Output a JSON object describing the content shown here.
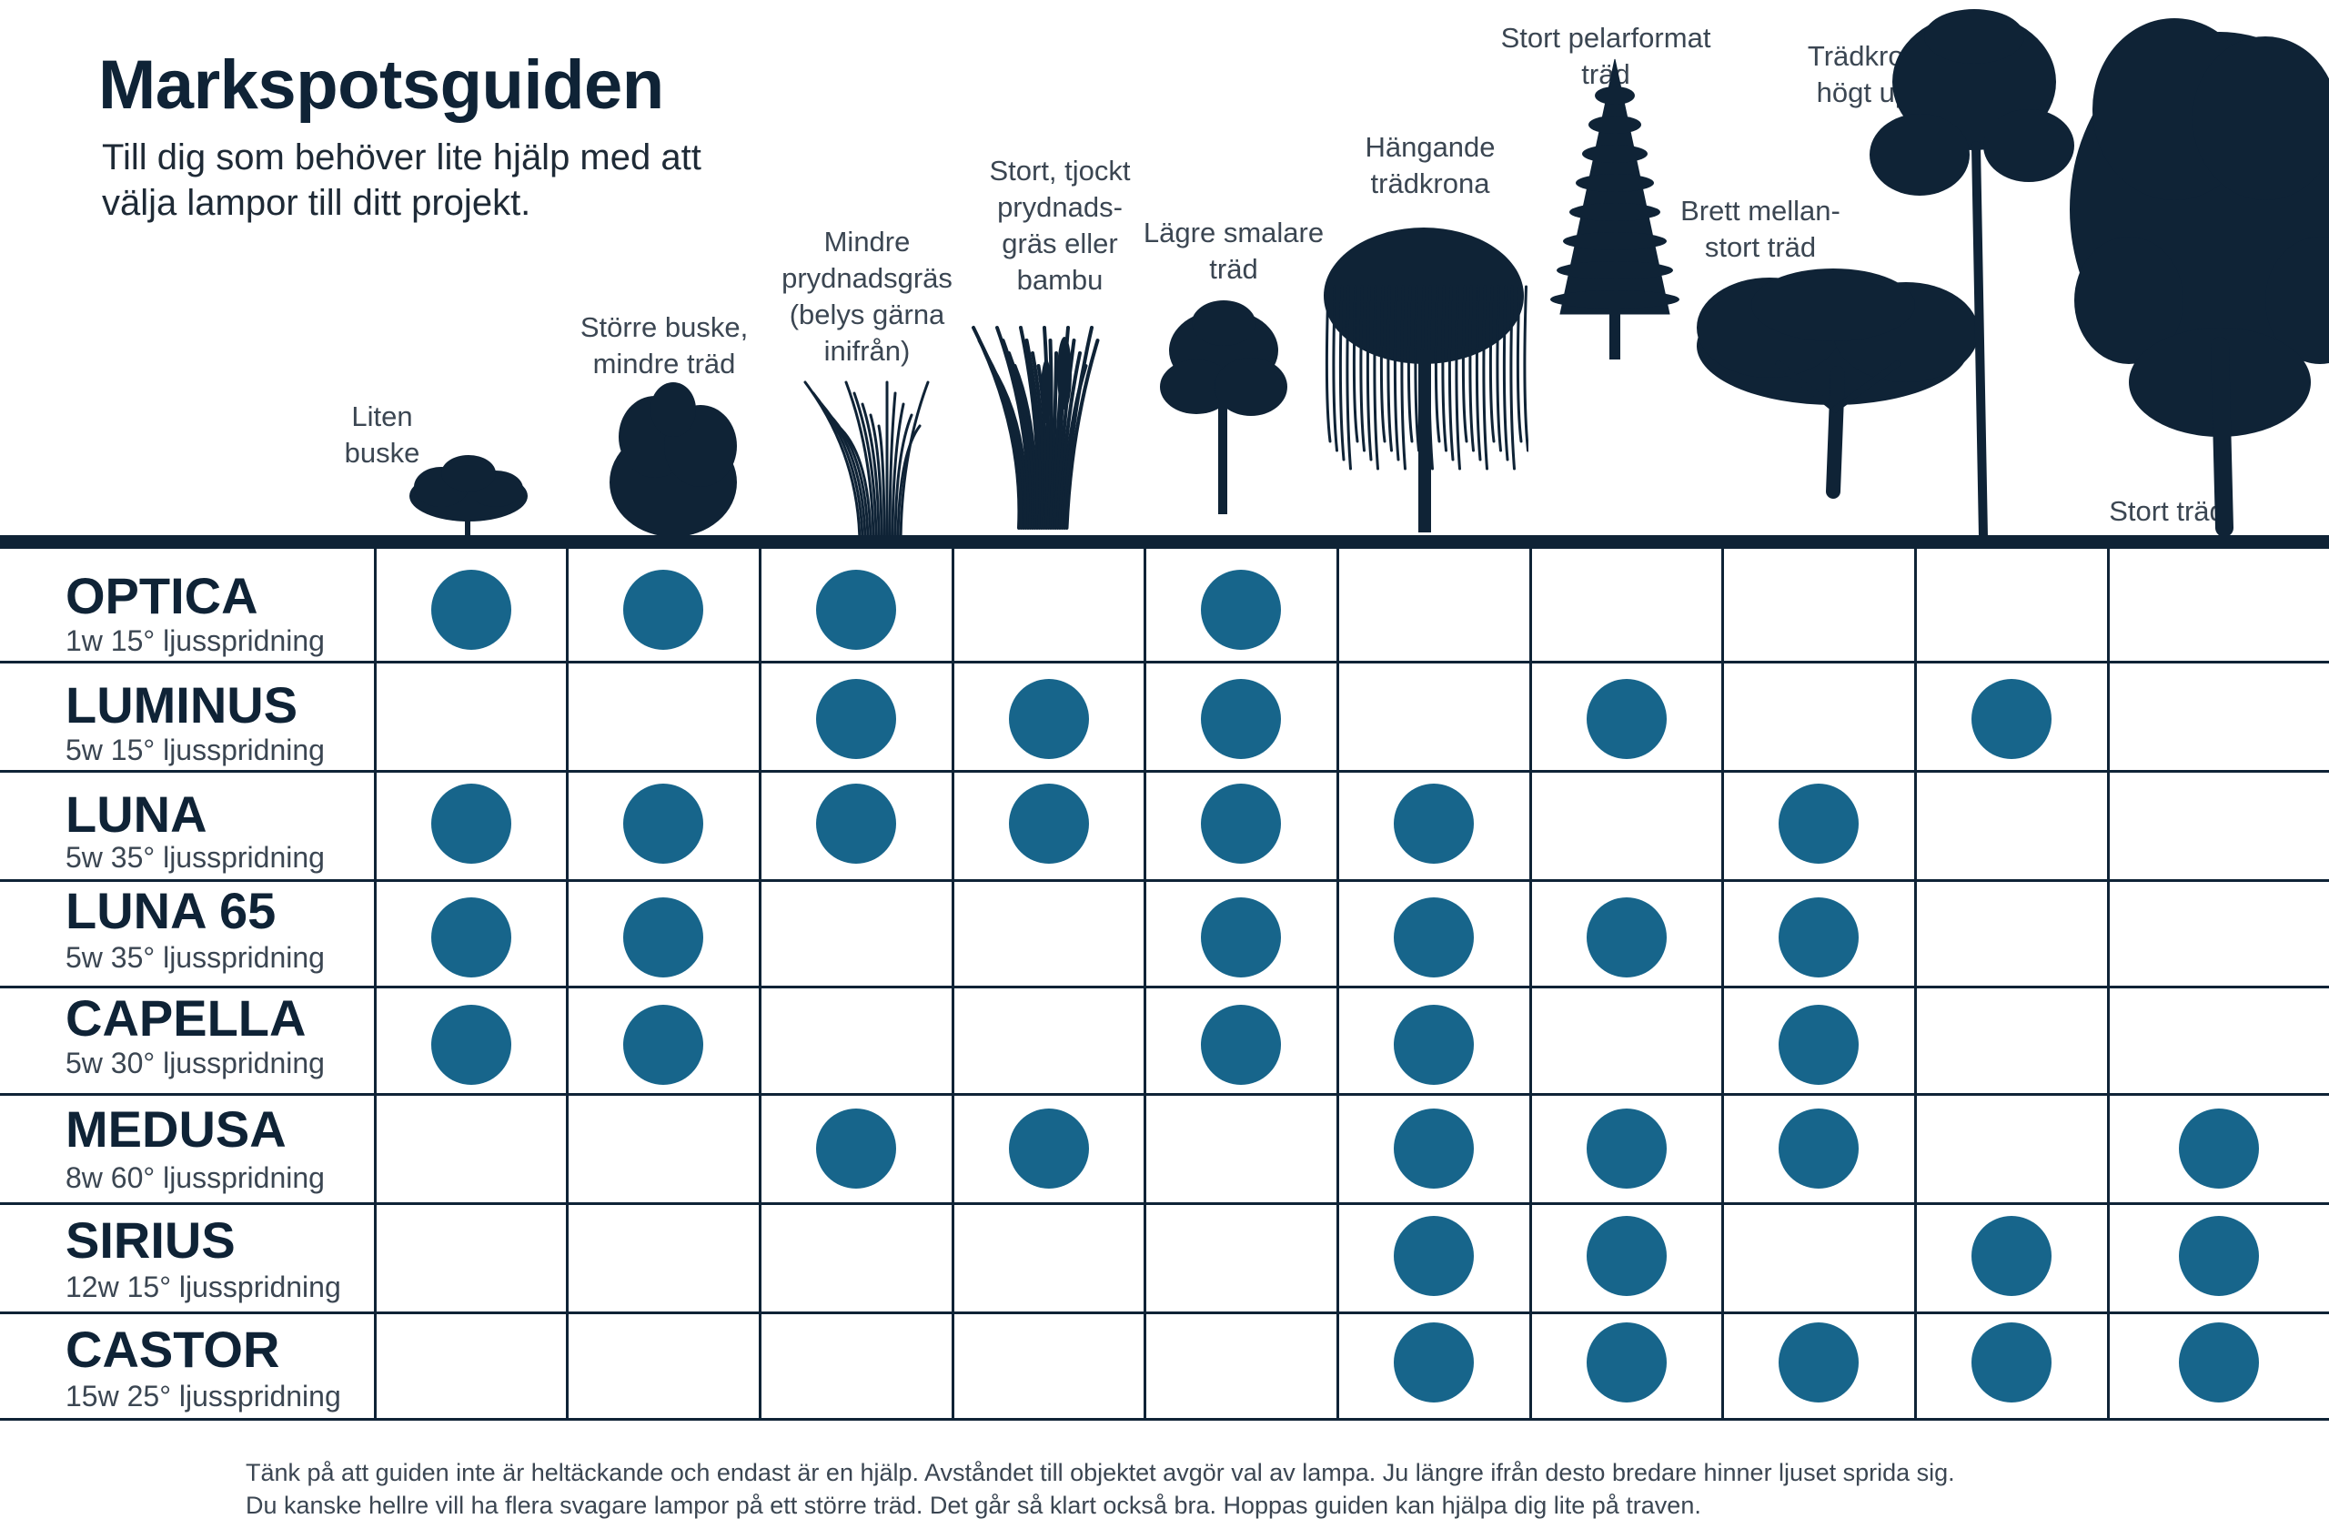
{
  "title": "Markspotsguiden",
  "subtitle": "Till dig som behöver lite hjälp med att välja lampor till ditt projekt.",
  "colors": {
    "dot": "#17658b",
    "ink": "#0f2336"
  },
  "columns": [
    {
      "label": "Liten\nbuske",
      "icon": "small-bush-icon"
    },
    {
      "label": "Större buske,\nmindre träd",
      "icon": "large-bush-icon"
    },
    {
      "label": "Mindre\nprydnadsgräs\n(belys gärna\ninifrån)",
      "icon": "ornamental-grass-icon"
    },
    {
      "label": "Stort, tjockt\nprydnads-\ngräs eller\nbambu",
      "icon": "bamboo-icon"
    },
    {
      "label": "Lägre smalare\nträd",
      "icon": "slim-tree-icon"
    },
    {
      "label": "Hängande\nträdkrona",
      "icon": "weeping-tree-icon"
    },
    {
      "label": "Stort pelarformat\nträd",
      "icon": "columnar-tree-icon"
    },
    {
      "label": "Brett mellan-\nstort träd",
      "icon": "broad-tree-icon"
    },
    {
      "label": "Trädkrona\nhögt upp",
      "icon": "tall-crown-tree-icon"
    },
    {
      "label": "Stort träd",
      "icon": "large-tree-icon"
    }
  ],
  "rows": [
    {
      "name": "OPTICA",
      "spec": "1w 15° ljusspridning",
      "dots": [
        1,
        1,
        1,
        0,
        1,
        0,
        0,
        0,
        0,
        0
      ]
    },
    {
      "name": "LUMINUS",
      "spec": "5w 15° ljusspridning",
      "dots": [
        0,
        0,
        1,
        1,
        1,
        0,
        1,
        0,
        1,
        0
      ]
    },
    {
      "name": "LUNA",
      "spec": "5w 35° ljusspridning",
      "dots": [
        1,
        1,
        1,
        1,
        1,
        1,
        0,
        1,
        0,
        0
      ]
    },
    {
      "name": "LUNA 65",
      "spec": "5w 35° ljusspridning",
      "dots": [
        1,
        1,
        0,
        0,
        1,
        1,
        1,
        1,
        0,
        0
      ]
    },
    {
      "name": "CAPELLA",
      "spec": "5w 30° ljusspridning",
      "dots": [
        1,
        1,
        0,
        0,
        1,
        1,
        0,
        1,
        0,
        0
      ]
    },
    {
      "name": "MEDUSA",
      "spec": "8w 60° ljusspridning",
      "dots": [
        0,
        0,
        1,
        1,
        0,
        1,
        1,
        1,
        0,
        1
      ]
    },
    {
      "name": "SIRIUS",
      "spec": "12w 15° ljusspridning",
      "dots": [
        0,
        0,
        0,
        0,
        0,
        1,
        1,
        0,
        1,
        1
      ]
    },
    {
      "name": "CASTOR",
      "spec": "15w 25° ljusspridning",
      "dots": [
        0,
        0,
        0,
        0,
        0,
        1,
        1,
        1,
        1,
        1
      ]
    }
  ],
  "footer": [
    "Tänk på att guiden inte är heltäckande och endast är en hjälp. Avståndet till objektet avgör val av lampa. Ju längre ifrån desto bredare hinner ljuset sprida sig.",
    "Du kanske hellre vill ha flera svagare lampor på ett större träd. Det går så klart också bra. Hoppas guiden kan hjälpa dig lite på traven."
  ]
}
